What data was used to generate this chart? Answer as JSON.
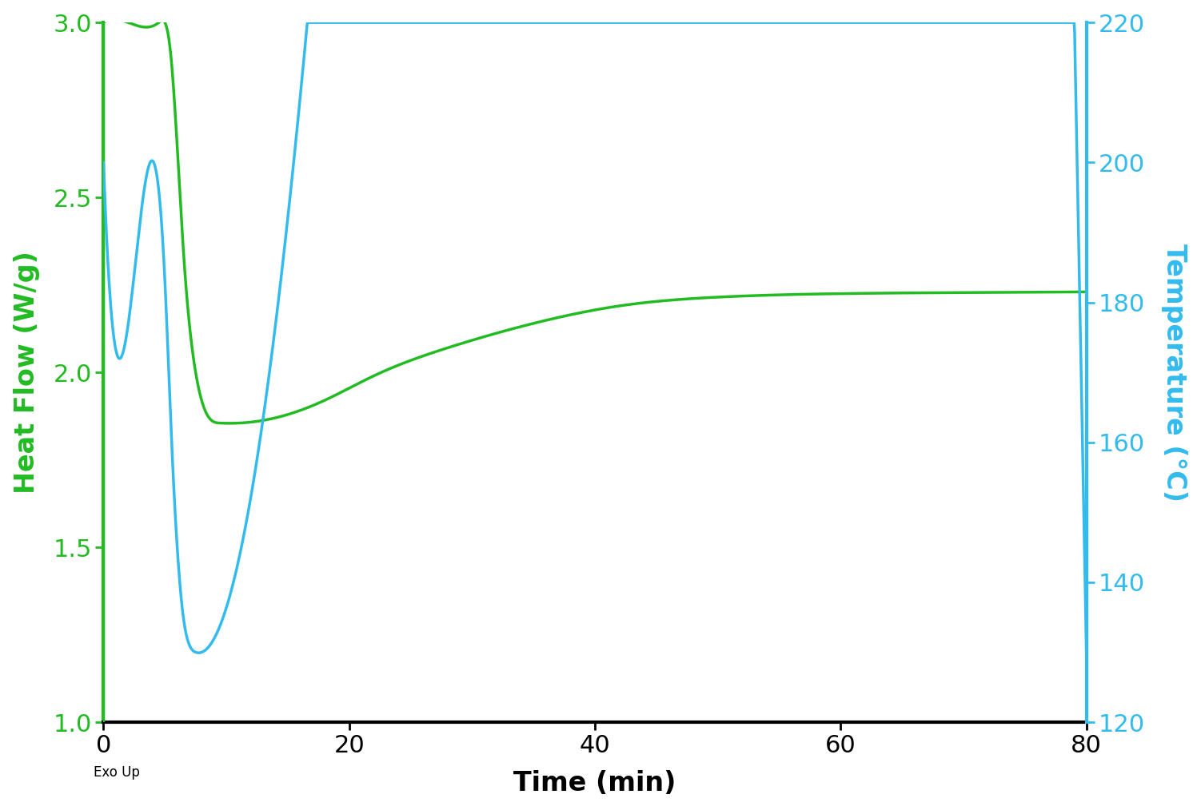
{
  "title": "",
  "xlabel": "Time (min)",
  "ylabel_left": "Heat Flow (W/g)",
  "ylabel_right": "Temperature (°C)",
  "exo_up_label": "Exo Up",
  "xlim": [
    0,
    80
  ],
  "ylim_left": [
    1.0,
    3.0
  ],
  "ylim_right": [
    120,
    220
  ],
  "xticks": [
    0,
    20,
    40,
    60,
    80
  ],
  "yticks_left": [
    1.0,
    1.5,
    2.0,
    2.5,
    3.0
  ],
  "yticks_right": [
    120,
    140,
    160,
    180,
    200,
    220
  ],
  "green_color": "#22BB22",
  "blue_color": "#33BBEE",
  "background_color": "#FFFFFF",
  "linewidth": 2.5,
  "font_size_ticks": 22,
  "font_size_labels": 24,
  "font_size_exo": 12,
  "spine_linewidth": 3.0
}
